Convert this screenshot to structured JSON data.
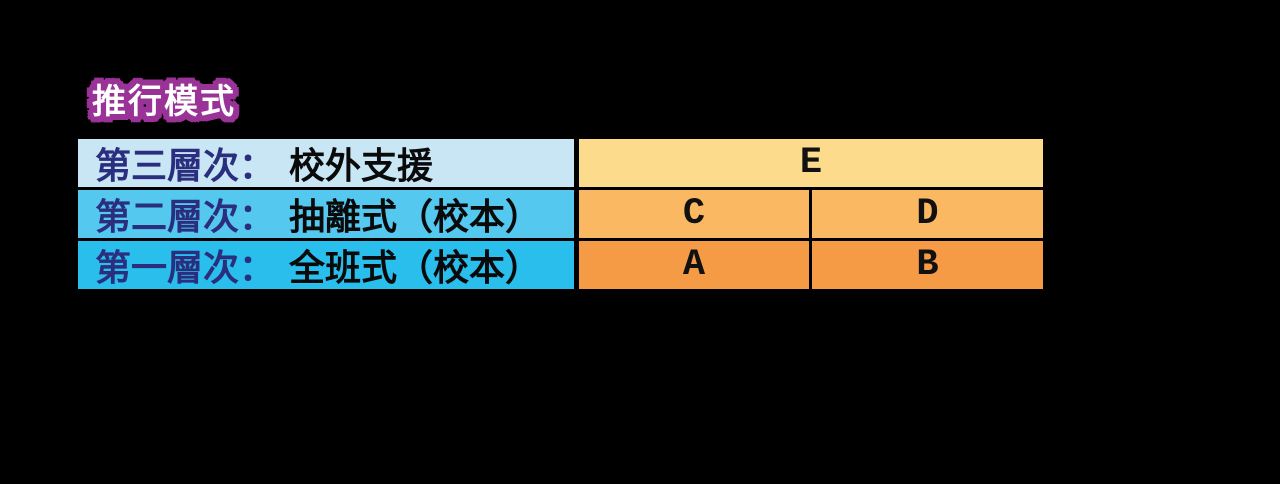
{
  "page": {
    "background_color": "#000000"
  },
  "title": {
    "text": "推行模式",
    "text_color": "#FFFFFF",
    "outline_color": "#9A3397"
  },
  "table": {
    "name": "implementation-tiers",
    "rows": [
      {
        "tier_label": "第三層次：",
        "program": "校外支援",
        "bg": "#C9E6F5",
        "tier_text_color": "#2B2E7E",
        "cells": [
          {
            "label": "E",
            "bg": "#FCDC8C"
          }
        ]
      },
      {
        "tier_label": "第二層次：",
        "program": "抽離式（校本）",
        "bg": "#55C8EF",
        "tier_text_color": "#2B2E7E",
        "cells": [
          {
            "label": "C",
            "bg": "#FBB862"
          },
          {
            "label": "D",
            "bg": "#FBB862"
          }
        ]
      },
      {
        "tier_label": "第一層次：",
        "program": "全班式（校本）",
        "bg": "#29BEEC",
        "tier_text_color": "#2B2E7E",
        "cells": [
          {
            "label": "A",
            "bg": "#F69B45"
          },
          {
            "label": "B",
            "bg": "#F69B45"
          }
        ]
      }
    ]
  }
}
